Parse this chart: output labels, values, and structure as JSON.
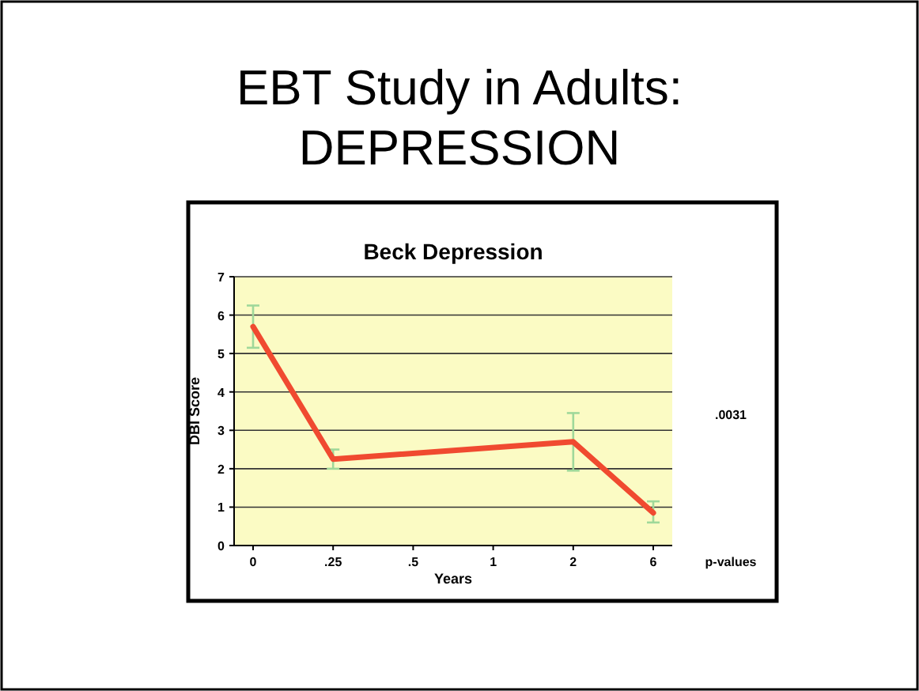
{
  "chart_data": {
    "type": "line",
    "title": "EBT Study in Adults: DEPRESSION",
    "subtitle": "Beck Depression",
    "xlabel": "Years",
    "ylabel": "DBI Score",
    "categories": [
      "0",
      ".25",
      ".5",
      "1",
      "2",
      "6"
    ],
    "series": [
      {
        "color": "#f04a30",
        "values": [
          5.7,
          2.25,
          null,
          null,
          2.7,
          0.85
        ],
        "errors": [
          [
            5.15,
            6.25
          ],
          [
            2.0,
            2.5
          ],
          null,
          null,
          [
            1.95,
            3.45
          ],
          [
            0.6,
            1.15
          ]
        ]
      }
    ],
    "ylim": [
      0,
      7
    ],
    "yticks": [
      0,
      1,
      2,
      3,
      4,
      5,
      6,
      7
    ],
    "grid": "y",
    "marker": "none",
    "annotations": [
      ".0031",
      "p-values"
    ]
  }
}
